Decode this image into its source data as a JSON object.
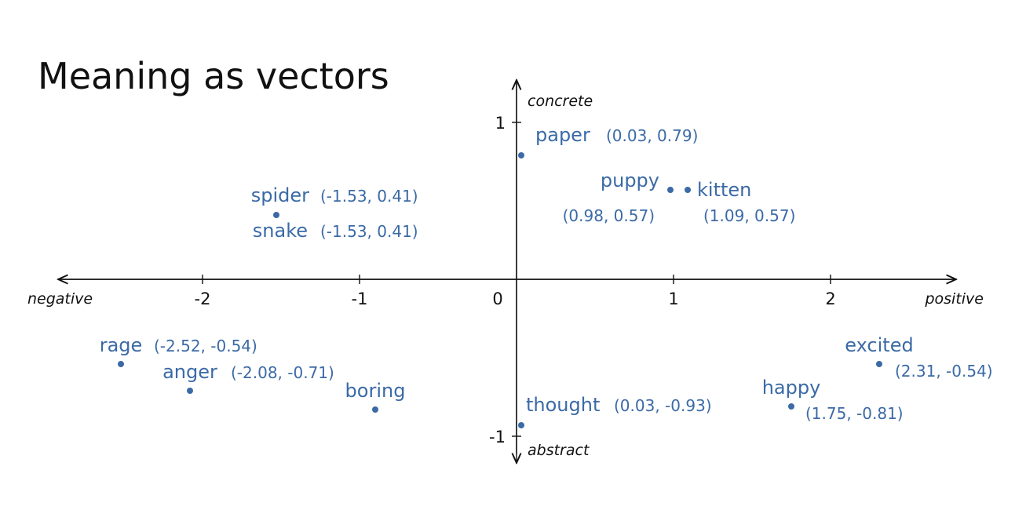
{
  "title": "Meaning as vectors",
  "chart_data": {
    "type": "scatter",
    "title": "Meaning as vectors",
    "xlim": [
      -3,
      2.8
    ],
    "ylim": [
      -1.15,
      1.25
    ],
    "x_ticks": [
      -2,
      -1,
      0,
      1,
      2
    ],
    "x_tick_labels": [
      "-2",
      "-1",
      "0",
      "1",
      "2"
    ],
    "y_ticks": [
      1,
      -1
    ],
    "y_tick_labels": [
      "1",
      "-1"
    ],
    "axis_labels": {
      "x_negative": "negative",
      "x_positive": "positive",
      "y_positive": "concrete",
      "y_negative": "abstract"
    },
    "points": [
      {
        "word": "paper",
        "coord_label": "(0.03, 0.79)",
        "x": 0.03,
        "y": 0.79
      },
      {
        "word": "puppy",
        "coord_label": "(0.98, 0.57)",
        "x": 0.98,
        "y": 0.57
      },
      {
        "word": "kitten",
        "coord_label": "(1.09, 0.57)",
        "x": 1.09,
        "y": 0.57
      },
      {
        "word": "spider",
        "coord_label": "(-1.53, 0.41)",
        "x": -1.53,
        "y": 0.41
      },
      {
        "word": "snake",
        "coord_label": "(-1.53, 0.41)",
        "x": -1.53,
        "y": 0.41
      },
      {
        "word": "rage",
        "coord_label": "(-2.52, -0.54)",
        "x": -2.52,
        "y": -0.54
      },
      {
        "word": "anger",
        "coord_label": "(-2.08, -0.71)",
        "x": -2.08,
        "y": -0.71
      },
      {
        "word": "boring",
        "coord_label": "",
        "x": -0.9,
        "y": -0.83
      },
      {
        "word": "thought",
        "coord_label": "(0.03, -0.93)",
        "x": 0.03,
        "y": -0.93
      },
      {
        "word": "happy",
        "coord_label": "(1.75, -0.81)",
        "x": 1.75,
        "y": -0.81
      },
      {
        "word": "excited",
        "coord_label": "(2.31, -0.54)",
        "x": 2.31,
        "y": -0.54
      }
    ],
    "colors": {
      "points": "#3b6aa6",
      "axes": "#111111"
    }
  }
}
